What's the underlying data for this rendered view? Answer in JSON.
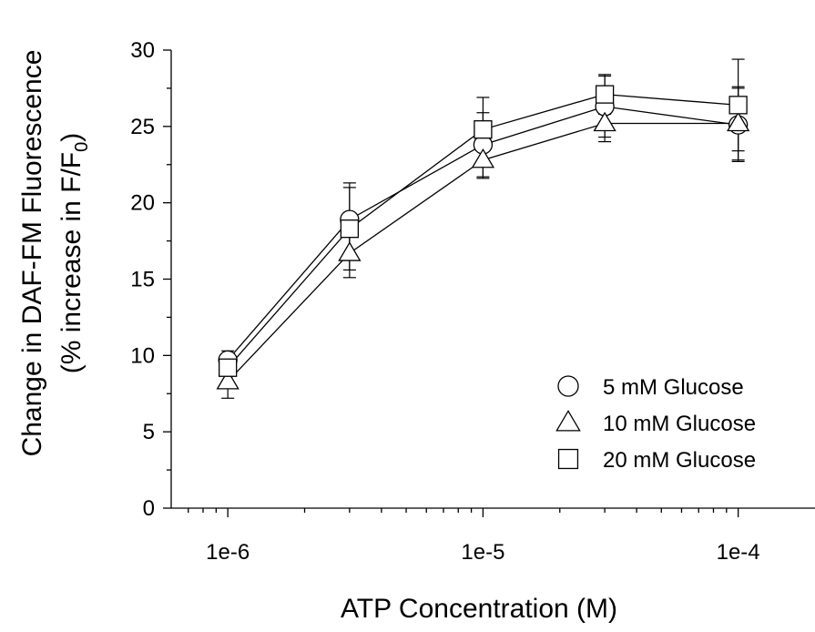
{
  "chart_data": {
    "type": "line",
    "xlabel": "ATP Concentration (M)",
    "ylabel_line1": "Change in DAF-FM Fluorescence",
    "ylabel_line2_prefix": "(% increase in F/F",
    "ylabel_line2_sub": "0",
    "ylabel_line2_suffix": ")",
    "x_scale": "log",
    "xlim": [
      6e-07,
      0.0002
    ],
    "ylim": [
      0,
      30
    ],
    "x_ticks": [
      1e-06,
      1e-05,
      0.0001
    ],
    "x_tick_labels": [
      "1e-6",
      "1e-5",
      "1e-4"
    ],
    "y_ticks": [
      0,
      5,
      10,
      15,
      20,
      25,
      30
    ],
    "y_tick_labels": [
      "0",
      "5",
      "10",
      "15",
      "20",
      "25",
      "30"
    ],
    "grid": false,
    "legend_position": "bottom-right",
    "x": [
      1e-06,
      3e-06,
      1e-05,
      3e-05,
      0.0001
    ],
    "series": [
      {
        "name": "5 mM Glucose",
        "marker": "circle",
        "values": [
          9.7,
          18.9,
          23.8,
          26.3,
          25.1
        ],
        "errors": [
          0.6,
          2.4,
          2.1,
          2.0,
          2.4
        ]
      },
      {
        "name": "10 mM Glucose",
        "marker": "triangle",
        "values": [
          8.3,
          16.7,
          22.8,
          25.2,
          25.2
        ],
        "errors": [
          1.1,
          1.6,
          1.2,
          1.2,
          2.4
        ]
      },
      {
        "name": "20 mM Glucose",
        "marker": "square",
        "values": [
          9.2,
          18.3,
          24.8,
          27.1,
          26.4
        ],
        "errors": [
          0.5,
          2.7,
          2.1,
          1.3,
          3.0
        ]
      }
    ]
  }
}
